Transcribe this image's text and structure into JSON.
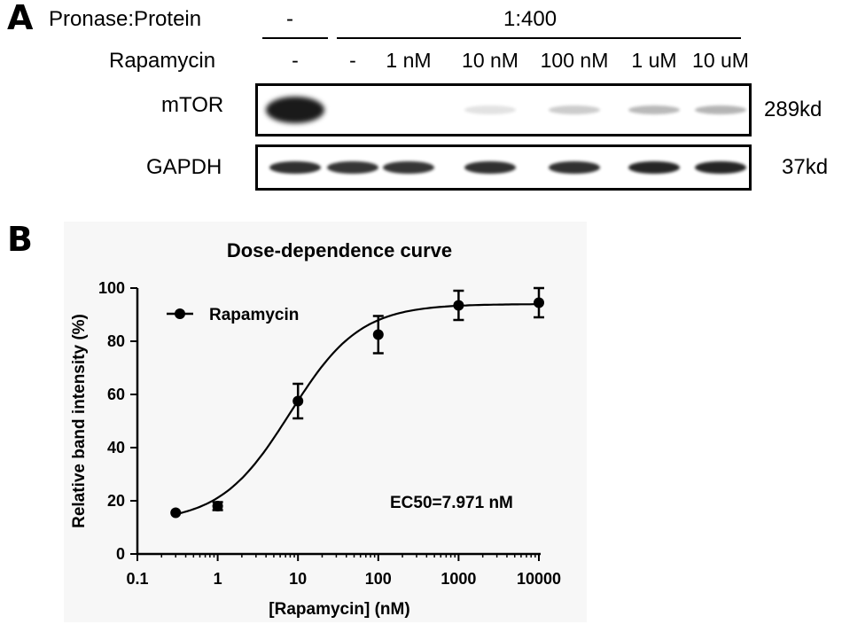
{
  "panel_a": {
    "letter": "A",
    "row1_label": "Pronase:Protein",
    "row1_values": [
      "-",
      "1:400"
    ],
    "row2_label": "Rapamycin",
    "lanes": [
      "-",
      "-",
      "1 nM",
      "10 nM",
      "100 nM",
      "1 uM",
      "10 uM"
    ],
    "blots": [
      {
        "name": "mTOR",
        "size": "289kd",
        "band_intensity": [
          1.0,
          0.0,
          0.0,
          0.12,
          0.22,
          0.3,
          0.32
        ]
      },
      {
        "name": "GAPDH",
        "size": "37kd",
        "band_intensity": [
          0.9,
          0.88,
          0.88,
          0.9,
          0.9,
          0.95,
          0.95
        ]
      }
    ],
    "colors": {
      "band": "#1a1a1a",
      "frame": "#000000"
    }
  },
  "panel_b": {
    "letter": "B"
  },
  "chart_data": {
    "type": "scatter",
    "title": "Dose-dependence curve",
    "xlabel": "[Rapamycin] (nM)",
    "ylabel": "Relative band intensity (%)",
    "x_scale": "log",
    "xlim": [
      0.1,
      10000
    ],
    "ylim": [
      0,
      100
    ],
    "x_ticks": [
      "0.1",
      "1",
      "10",
      "100",
      "1000",
      "10000"
    ],
    "y_ticks": [
      "0",
      "20",
      "40",
      "60",
      "80",
      "100"
    ],
    "grid": false,
    "legend_placement": "top-left",
    "series": [
      {
        "name": "Rapamycin",
        "x": [
          0.3,
          1,
          10,
          100,
          1000,
          10000
        ],
        "y": [
          15.5,
          18,
          57.5,
          82.5,
          93.5,
          94.5
        ],
        "error": [
          0,
          1.5,
          6.5,
          7,
          5.5,
          5.5
        ],
        "fit": {
          "model": "sigmoidal dose-response",
          "bottom": 12,
          "top": 94,
          "ec50": 7.971
        }
      }
    ],
    "annotation": "EC50=7.971 nM",
    "colors": {
      "marker": "#000000",
      "background": "#f7f7f7"
    }
  }
}
